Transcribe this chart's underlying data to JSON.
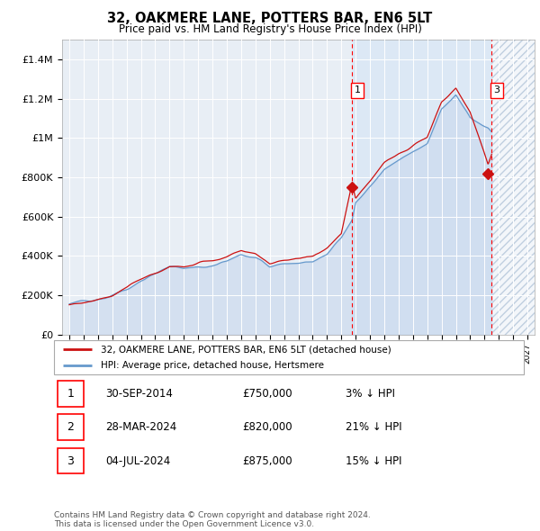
{
  "title": "32, OAKMERE LANE, POTTERS BAR, EN6 5LT",
  "subtitle": "Price paid vs. HM Land Registry's House Price Index (HPI)",
  "ylim": [
    0,
    1500000
  ],
  "yticks": [
    0,
    200000,
    400000,
    600000,
    800000,
    1000000,
    1200000,
    1400000
  ],
  "ytick_labels": [
    "£0",
    "£200K",
    "£400K",
    "£600K",
    "£800K",
    "£1M",
    "£1.2M",
    "£1.4M"
  ],
  "xlim_start": 1994.5,
  "xlim_end": 2027.5,
  "xticks": [
    1995,
    1996,
    1997,
    1998,
    1999,
    2000,
    2001,
    2002,
    2003,
    2004,
    2005,
    2006,
    2007,
    2008,
    2009,
    2010,
    2011,
    2012,
    2013,
    2014,
    2015,
    2016,
    2017,
    2018,
    2019,
    2020,
    2021,
    2022,
    2023,
    2024,
    2025,
    2026,
    2027
  ],
  "bg_color": "#e8eef5",
  "bg_color_highlight": "#dce8f5",
  "hatch_color": "#c0cfe0",
  "future_start": 2024.5,
  "highlight_start": 2014.75,
  "sale1_x": 2014.75,
  "sale1_y": 750000,
  "sale2_x": 2024.25,
  "sale2_y": 820000,
  "sale3_x": 2024.5,
  "sale3_y": 875000,
  "vline1_x": 2014.75,
  "vline2_x": 2024.5,
  "legend_label_red": "32, OAKMERE LANE, POTTERS BAR, EN6 5LT (detached house)",
  "legend_label_blue": "HPI: Average price, detached house, Hertsmere",
  "table_rows": [
    {
      "num": "1",
      "date": "30-SEP-2014",
      "price": "£750,000",
      "hpi": "3% ↓ HPI"
    },
    {
      "num": "2",
      "date": "28-MAR-2024",
      "price": "£820,000",
      "hpi": "21% ↓ HPI"
    },
    {
      "num": "3",
      "date": "04-JUL-2024",
      "price": "£875,000",
      "hpi": "15% ↓ HPI"
    }
  ],
  "footnote": "Contains HM Land Registry data © Crown copyright and database right 2024.\nThis data is licensed under the Open Government Licence v3.0.",
  "red_line_color": "#cc1111",
  "blue_line_color": "#6699cc",
  "blue_fill_color": "#c8d8ee"
}
